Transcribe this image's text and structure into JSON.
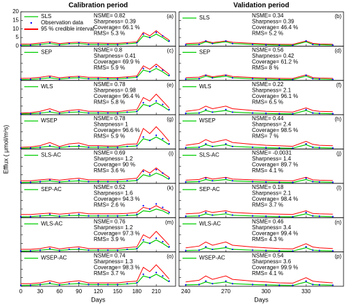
{
  "chart_data": {
    "type": "line",
    "ylabel": "Efflux ( μmol/m²s)",
    "xlabel": "Days",
    "ylim": [
      0,
      20
    ],
    "yticks": [
      0,
      5,
      10,
      15,
      20
    ],
    "legend": [
      {
        "name": "SLS",
        "color": "#00cc00"
      },
      {
        "name": "Observation data",
        "color": "#0000ff"
      },
      {
        "name": "95 % credible interval",
        "color": "#ff0000"
      }
    ],
    "columns": [
      {
        "title": "Calibration period",
        "xlim": [
          0,
          240
        ],
        "xticks": [
          0,
          30,
          60,
          90,
          120,
          150,
          180,
          210
        ],
        "x": [
          0,
          15,
          30,
          45,
          60,
          75,
          90,
          105,
          120,
          135,
          150,
          165,
          180,
          190,
          200,
          210,
          220,
          230
        ],
        "observed": [
          0.5,
          0.6,
          1,
          2,
          0.8,
          1.5,
          2,
          1,
          1.2,
          1,
          1,
          1.5,
          2,
          7,
          5,
          8,
          6,
          3
        ],
        "panels": [
          {
            "label": "(a)",
            "stats": [
              "NSME= 0.82",
              "Sharpness= 0.39",
              "Coverage= 66.1 %",
              "RMS= 5.3 %"
            ],
            "mean": [
              0.5,
              0.6,
              1,
              1.5,
              0.8,
              1.3,
              1.5,
              1,
              1,
              1,
              1,
              1.3,
              1.8,
              6,
              5,
              7,
              5,
              2.5
            ],
            "upper": [
              1.2,
              1.3,
              1.8,
              2.5,
              1.5,
              2,
              2.3,
              1.8,
              1.8,
              1.7,
              1.7,
              2,
              2.5,
              8,
              6,
              9,
              6,
              3.5
            ]
          },
          {
            "label": "(c)",
            "model": "SEP",
            "stats": [
              "NSME= 0.8",
              "Sharpness= 0.41",
              "Coverage= 69.9 %",
              "RMS= 5.9 %"
            ],
            "mean": [
              0.5,
              0.6,
              1,
              1.5,
              0.8,
              1.3,
              1.5,
              1,
              1,
              1,
              1,
              1.3,
              1.8,
              6,
              5,
              7,
              5,
              2.5
            ],
            "upper": [
              1.2,
              1.3,
              1.8,
              2.6,
              1.5,
              2.1,
              2.4,
              1.8,
              1.8,
              1.7,
              1.7,
              2.1,
              2.6,
              8.5,
              6.5,
              9.5,
              6.5,
              3.6
            ]
          },
          {
            "label": "(e)",
            "model": "WLS",
            "stats": [
              "NSME= 0.78",
              "Sharpness= 0.98",
              "Coverage= 96.4 %",
              "RMS= 5.8 %"
            ],
            "mean": [
              0.5,
              0.6,
              1,
              1.6,
              0.8,
              1.4,
              1.6,
              1,
              1,
              1,
              1,
              1.4,
              1.8,
              6,
              5,
              7,
              5,
              2.5
            ],
            "upper": [
              1,
              1.2,
              2,
              3.5,
              1.5,
              2.5,
              3,
              2,
              2,
              1.8,
              1.8,
              2.5,
              3,
              10,
              8,
              12,
              8,
              4
            ]
          },
          {
            "label": "(g)",
            "model": "WSEP",
            "stats": [
              "NSME= 0.78",
              "Sharpness= 1",
              "Coverage= 96.6 %",
              "RMS= 5.9 %"
            ],
            "mean": [
              0.5,
              0.6,
              1,
              1.6,
              0.8,
              1.4,
              1.6,
              1,
              1,
              1,
              1,
              1.4,
              1.8,
              6,
              5,
              7,
              5,
              2.5
            ],
            "upper": [
              1,
              1.2,
              2,
              3.8,
              1.5,
              3,
              3.5,
              2,
              2,
              1.8,
              1.8,
              2.8,
              3,
              12,
              9,
              13,
              9,
              4.5
            ]
          },
          {
            "label": "(i)",
            "model": "SLS-AC",
            "stats": [
              "NSME= 0.69",
              "Sharpness= 1.2",
              "Coverage= 90 %",
              "RMS= 3.6 %"
            ],
            "mean": [
              0.5,
              0.6,
              1,
              1.4,
              0.8,
              1.2,
              1.4,
              1,
              1,
              1,
              1,
              1.2,
              1.6,
              5,
              4,
              6,
              4.5,
              2.2
            ],
            "upper": [
              1.5,
              1.5,
              2,
              2.5,
              1.8,
              2.5,
              3,
              2,
              2,
              2,
              2,
              2.5,
              3,
              8,
              6,
              9,
              6,
              3.5
            ]
          },
          {
            "label": "(k)",
            "model": "SEP-AC",
            "stats": [
              "NSME= 0.52",
              "Sharpness= 1.6",
              "Coverage= 94.3 %",
              "RMS= 2.6 %"
            ],
            "mean": [
              0.5,
              0.6,
              1,
              1.3,
              0.8,
              1.2,
              1.3,
              1,
              1,
              1,
              1,
              1.2,
              1.5,
              4,
              3.5,
              5,
              4,
              2
            ],
            "upper": [
              1.8,
              1.8,
              2.2,
              2.6,
              2,
              2.5,
              3,
              2.2,
              2.2,
              2.2,
              2.2,
              2.5,
              3,
              6,
              5,
              7,
              5,
              3.5
            ]
          },
          {
            "label": "(m)",
            "model": "WLS-AC",
            "stats": [
              "NSME= 0.76",
              "Sharpness= 1.2",
              "Coverage= 97.3 %",
              "RMS= 3.9 %"
            ],
            "mean": [
              0.5,
              0.6,
              1,
              1.5,
              0.8,
              1.3,
              1.5,
              1,
              1,
              1,
              1,
              1.3,
              1.8,
              6,
              5,
              7,
              5,
              2.5
            ],
            "upper": [
              1.5,
              1.5,
              2,
              3,
              1.8,
              2.5,
              3,
              2,
              2,
              2,
              2,
              2.5,
              3,
              10,
              8,
              12,
              8,
              4
            ]
          },
          {
            "label": "(o)",
            "model": "WSEP-AC",
            "stats": [
              "NSME= 0.74",
              "Sharpness= 1.3",
              "Coverage= 98.3 %",
              "RMS= 3.7 %"
            ],
            "mean": [
              0.5,
              0.6,
              1,
              1.5,
              0.8,
              1.3,
              1.5,
              1,
              1,
              1,
              1,
              1.3,
              1.8,
              6,
              5,
              7,
              5,
              2.5
            ],
            "upper": [
              1.5,
              1.5,
              2,
              3.2,
              1.8,
              2.6,
              3.2,
              2,
              2,
              2,
              2,
              2.6,
              3,
              11,
              8.5,
              12.5,
              8.5,
              4.2
            ]
          }
        ]
      },
      {
        "title": "Validation period",
        "xlim": [
          235,
          358
        ],
        "xticks": [
          240,
          270,
          300,
          330
        ],
        "x": [
          240,
          250,
          255,
          260,
          270,
          275,
          290,
          300,
          310,
          320,
          330,
          335,
          340,
          350
        ],
        "observed": [
          0.8,
          1,
          3,
          1.5,
          3,
          1.5,
          1,
          0.8,
          0.6,
          0.5,
          3,
          1,
          0.8,
          0.6
        ],
        "panels": [
          {
            "label": "(b)",
            "model": "SLS",
            "stats": [
              "NSME= 0.34",
              "Sharpness= 0.39",
              "Coverage= 46.4 %",
              "RMS= 5.2 %"
            ],
            "mean": [
              0.8,
              1,
              2.5,
              1.5,
              2.5,
              1.5,
              1,
              0.8,
              0.6,
              0.5,
              2.5,
              1,
              0.8,
              0.6
            ],
            "upper": [
              1.5,
              1.8,
              3,
              2,
              3,
              2.2,
              1.6,
              1.3,
              1.1,
              1,
              3,
              1.6,
              1.3,
              1.1
            ]
          },
          {
            "label": "(d)",
            "model": "SEP",
            "stats": [
              "NSME= 0.56",
              "Sharpness= 0.42",
              "Coverage= 61.2 %",
              "RMS= 8 %"
            ],
            "mean": [
              0.8,
              1,
              2.5,
              1.5,
              2.5,
              1.5,
              1,
              0.8,
              0.6,
              0.5,
              2.5,
              1,
              0.8,
              0.6
            ],
            "upper": [
              1.6,
              1.9,
              3.2,
              2.1,
              3.2,
              2.3,
              1.7,
              1.4,
              1.2,
              1.1,
              3.2,
              1.7,
              1.4,
              1.2
            ]
          },
          {
            "label": "(f)",
            "model": "WLS",
            "stats": [
              "NSME= 0.22",
              "Sharpness= 2.1",
              "Coverage= 96.1 %",
              "RMS= 6.5 %"
            ],
            "mean": [
              0.8,
              1,
              2.5,
              1.5,
              2.5,
              1.5,
              1,
              0.8,
              0.6,
              0.5,
              2.5,
              1,
              0.8,
              0.6
            ],
            "upper": [
              2,
              3,
              5,
              3.5,
              5,
              3.5,
              2.5,
              2,
              1.8,
              1.5,
              4,
              2.5,
              2,
              1.8
            ]
          },
          {
            "label": "(h)",
            "model": "WSEP",
            "stats": [
              "NSME= 0.44",
              "Sharpness= 2.4",
              "Coverage= 98.5 %",
              "RMS= 7 %"
            ],
            "mean": [
              0.8,
              1,
              2.5,
              1.5,
              2.5,
              1.5,
              1,
              0.8,
              0.6,
              0.5,
              2.5,
              1,
              0.8,
              0.6
            ],
            "upper": [
              2.2,
              3.3,
              5.5,
              3.8,
              5.5,
              3.8,
              2.7,
              2.2,
              1.9,
              1.6,
              4.5,
              2.7,
              2.2,
              1.9
            ]
          },
          {
            "label": "(j)",
            "model": "SLS-AC",
            "stats": [
              "NSME= -0.0031",
              "Sharpness= 1.4",
              "Coverage= 89.7 %",
              "RMS= 4.1 %"
            ],
            "mean": [
              0.8,
              1,
              2.2,
              1.4,
              2.2,
              1.4,
              1,
              0.8,
              0.6,
              0.5,
              2.2,
              1,
              0.8,
              0.6
            ],
            "upper": [
              1.8,
              2.2,
              3.5,
              2.5,
              3.5,
              2.5,
              2,
              1.8,
              1.6,
              1.5,
              3.5,
              2,
              1.8,
              1.6
            ]
          },
          {
            "label": "(l)",
            "model": "SEP-AC",
            "stats": [
              "NSME= 0.18",
              "Sharpness= 2.1",
              "Coverage= 98.4 %",
              "RMS= 3.7 %"
            ],
            "mean": [
              0.8,
              1,
              2.2,
              1.4,
              2.2,
              1.4,
              1,
              0.8,
              0.6,
              0.5,
              2.2,
              1,
              0.8,
              0.6
            ],
            "upper": [
              2.2,
              2.6,
              4,
              3,
              4,
              3,
              2.4,
              2.2,
              2,
              1.9,
              4,
              2.4,
              2.2,
              2
            ]
          },
          {
            "label": "(n)",
            "model": "WLS-AC",
            "stats": [
              "NSME= 0.46",
              "Sharpness= 3.4",
              "Coverage= 99.4 %",
              "RMS= 4.3 %"
            ],
            "mean": [
              0.8,
              1,
              2.5,
              1.5,
              2.5,
              1.5,
              1,
              0.8,
              0.6,
              0.5,
              2.5,
              1,
              0.8,
              0.6
            ],
            "upper": [
              2.4,
              3.4,
              5.8,
              3.9,
              5.8,
              3.9,
              2.9,
              2.4,
              2,
              1.8,
              4.8,
              2.9,
              2.4,
              2
            ]
          },
          {
            "label": "(p)",
            "model": "WSEP-AC",
            "stats": [
              "NSME= 0.54",
              "Sharpness= 3.6",
              "Coverage= 99.9 %",
              "RMS= 4.1 %"
            ],
            "mean": [
              0.8,
              1,
              2.5,
              1.5,
              2.5,
              1.5,
              1,
              0.8,
              0.6,
              0.5,
              2.5,
              1,
              0.8,
              0.6
            ],
            "upper": [
              2.5,
              3.5,
              6,
              4,
              6,
              4,
              3,
              2.5,
              2,
              1.8,
              5,
              3,
              2.5,
              2
            ]
          }
        ]
      }
    ]
  }
}
